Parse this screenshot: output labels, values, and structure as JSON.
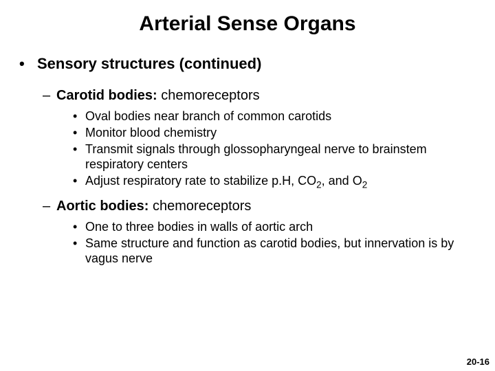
{
  "colors": {
    "background": "#ffffff",
    "text": "#000000"
  },
  "typography": {
    "title_fontsize": 30,
    "level1_fontsize": 22,
    "level2_fontsize": 20,
    "level3_fontsize": 18,
    "font_family": "Arial"
  },
  "title": "Arterial Sense Organs",
  "level1": {
    "bullet": "•",
    "text": "Sensory structures (continued)"
  },
  "sections": [
    {
      "dash": "–",
      "heading_bold": "Carotid bodies:",
      "heading_rest": " chemoreceptors",
      "bullets": [
        "Oval bodies near branch of common carotids",
        "Monitor blood chemistry",
        "Transmit signals through glossopharyngeal nerve to brainstem respiratory centers",
        "Adjust respiratory rate to stabilize p.H, CO₂, and O₂"
      ]
    },
    {
      "dash": "–",
      "heading_bold": "Aortic bodies:",
      "heading_rest": " chemoreceptors",
      "bullets": [
        "One to three bodies in walls of aortic arch",
        "Same structure and function as carotid bodies, but innervation is by vagus nerve"
      ]
    }
  ],
  "bullet3": "•",
  "page_number": "20-16"
}
